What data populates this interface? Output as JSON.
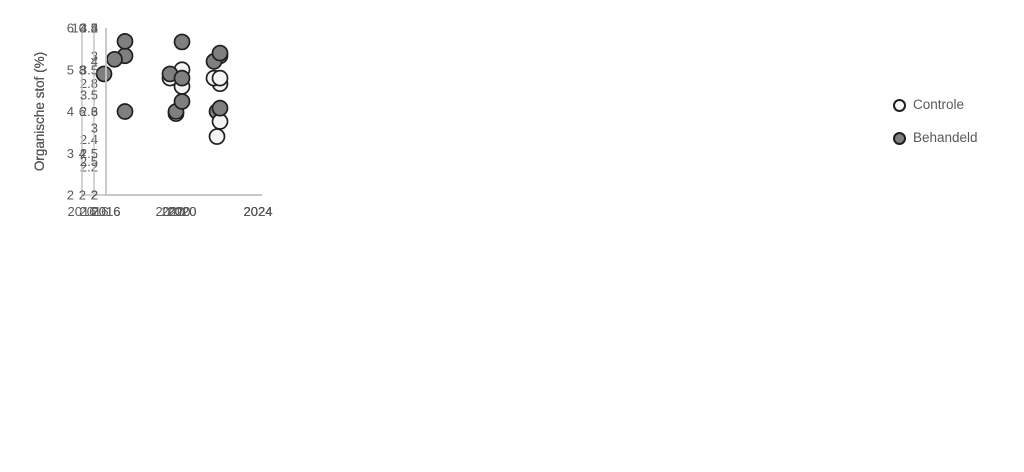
{
  "figure": {
    "background": "#ffffff"
  },
  "style": {
    "marker_stroke": "#1f1f1f",
    "axis_color": "#c6c6c6",
    "text_color": "#595959",
    "controle_fill": "#f4f4f4",
    "behandeld_fill": "#7f7f7f",
    "legend_controle_fill": "#ffffff",
    "legend_behandeld_fill": "#7f7f7f"
  },
  "legend": {
    "items": [
      {
        "label": "Controle",
        "marker": "open-circle"
      },
      {
        "label": "Behandeld",
        "marker": "filled-circle"
      }
    ]
  },
  "chart_data": [
    {
      "type": "scatter",
      "title": "",
      "xlabel": "",
      "ylabel": "Organische stof (%)",
      "xlim": [
        2016,
        2024
      ],
      "ylim": [
        2,
        3.2
      ],
      "yticks": [
        "2",
        "2.2",
        "2.4",
        "2.6",
        "2.8",
        "3",
        "3.2"
      ],
      "xticks": [
        "2016",
        "2020",
        "2024"
      ],
      "grid": false,
      "series": [
        {
          "name": "Controle",
          "points": [
            [
              2020,
              2.9
            ],
            [
              2022,
              2.8
            ]
          ]
        },
        {
          "name": "Behandeld",
          "points": [
            [
              2017,
              3.0
            ],
            [
              2020,
              3.1
            ],
            [
              2022,
              3.0
            ]
          ]
        }
      ]
    },
    {
      "type": "scatter",
      "title": "",
      "xlabel": "",
      "ylabel": "Organische stof (%)",
      "xlim": [
        2016,
        2024
      ],
      "ylim": [
        2,
        6
      ],
      "yticks": [
        "2",
        "3",
        "4",
        "5",
        "6"
      ],
      "xticks": [
        "2016",
        "2020",
        "2024"
      ],
      "grid": false,
      "series": [
        {
          "name": "Controle",
          "points": [
            [
              2020,
              4.8
            ],
            [
              2022,
              4.8
            ]
          ]
        },
        {
          "name": "Behandeld",
          "points": [
            [
              2017,
              4.9
            ],
            [
              2020,
              4.9
            ],
            [
              2022,
              5.2
            ]
          ]
        }
      ]
    },
    {
      "type": "scatter",
      "title": "",
      "xlabel": "",
      "ylabel": "Organische stof (%)",
      "xlim": [
        2016,
        2024
      ],
      "ylim": [
        2,
        10
      ],
      "yticks": [
        "2",
        "4",
        "6",
        "8",
        "10"
      ],
      "xticks": [
        "2016",
        "2020",
        "2024"
      ],
      "grid": false,
      "series": [
        {
          "name": "Controle",
          "points": [
            [
              2020,
              5.9
            ],
            [
              2022,
              4.8
            ]
          ]
        },
        {
          "name": "Behandeld",
          "points": [
            [
              2017,
              8.5
            ],
            [
              2020,
              6.0
            ],
            [
              2022,
              6.0
            ]
          ]
        }
      ]
    },
    {
      "type": "scatter",
      "title": "",
      "xlabel": "",
      "ylabel": "Organische stof (%)",
      "xlim": [
        2016,
        2024
      ],
      "ylim": [
        2,
        4.5
      ],
      "yticks": [
        "2",
        "2.5",
        "3",
        "3.5",
        "4",
        "4.5"
      ],
      "xticks": [
        "2016",
        "2020",
        "2024"
      ],
      "grid": false,
      "series": [
        {
          "name": "Controle",
          "points": [
            [
              2022,
              3.1
            ]
          ]
        },
        {
          "name": "Behandeld",
          "points": [
            [
              2017,
              4.3
            ],
            [
              2020,
              3.4
            ],
            [
              2022,
              3.3
            ]
          ]
        }
      ]
    },
    {
      "type": "scatter",
      "title": "",
      "xlabel": "",
      "ylabel": "Organische stof (%)",
      "xlim": [
        2016,
        2024
      ],
      "ylim": [
        2,
        4
      ],
      "yticks": [
        "2",
        "2.5",
        "3",
        "3.5",
        "4"
      ],
      "xticks": [
        "2016",
        "2020",
        "2024"
      ],
      "grid": false,
      "series": [
        {
          "name": "Controle",
          "points": [
            [
              2020,
              3.3
            ],
            [
              2022,
              3.4
            ]
          ]
        },
        {
          "name": "Behandeld",
          "points": [
            [
              2017,
              3.0
            ],
            [
              2020,
              3.4
            ],
            [
              2022,
              3.7
            ]
          ]
        }
      ]
    }
  ]
}
